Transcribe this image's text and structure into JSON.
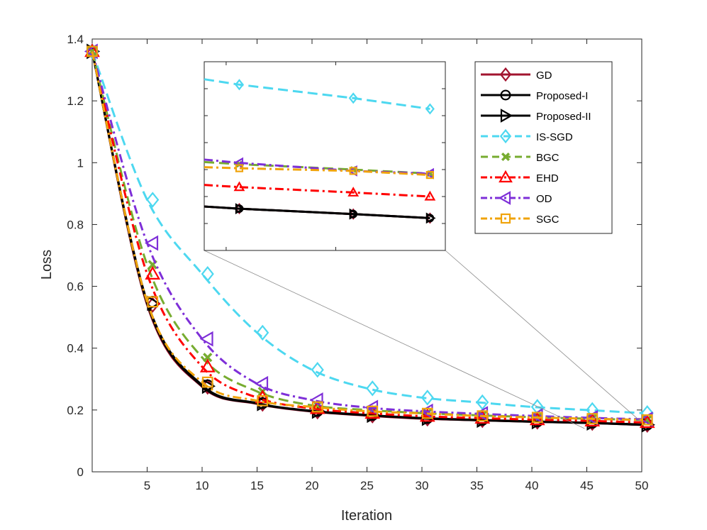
{
  "chart_data": {
    "type": "line",
    "xlabel": "Iteration",
    "ylabel": "Loss",
    "xlim": [
      0,
      50
    ],
    "ylim": [
      0,
      1.4
    ],
    "xticks": [
      5,
      10,
      15,
      20,
      25,
      30,
      35,
      40,
      45,
      50
    ],
    "yticks": [
      0,
      0.2,
      0.4,
      0.6,
      0.8,
      1,
      1.2,
      1.4
    ],
    "xtick_labels": [
      "5",
      "10",
      "15",
      "20",
      "25",
      "30",
      "35",
      "40",
      "45",
      "50"
    ],
    "ytick_labels": [
      "0",
      "0.2",
      "0.4",
      "0.6",
      "0.8",
      "1",
      "1.2",
      "1.4"
    ],
    "legend_position": "top-right, inside plot",
    "series": [
      {
        "name": "GD",
        "color": "#a2142f",
        "dash": "solid",
        "marker": "diamond",
        "x": [
          0,
          5,
          10,
          15,
          20,
          25,
          30,
          35,
          40,
          45,
          50
        ],
        "y": [
          1.36,
          0.54,
          0.275,
          0.22,
          0.195,
          0.182,
          0.172,
          0.167,
          0.162,
          0.158,
          0.152
        ]
      },
      {
        "name": "Proposed-I",
        "color": "#000000",
        "dash": "solid",
        "marker": "circle",
        "x": [
          0,
          5,
          10,
          15,
          20,
          25,
          30,
          35,
          40,
          45,
          50
        ],
        "y": [
          1.36,
          0.55,
          0.28,
          0.222,
          0.197,
          0.184,
          0.174,
          0.168,
          0.163,
          0.159,
          0.153
        ]
      },
      {
        "name": "Proposed-II",
        "color": "#000000",
        "dash": "solid",
        "marker": "triangle-right",
        "x": [
          0,
          5,
          10,
          15,
          20,
          25,
          30,
          35,
          40,
          45,
          50
        ],
        "y": [
          1.36,
          0.545,
          0.277,
          0.221,
          0.196,
          0.183,
          0.173,
          0.167,
          0.162,
          0.158,
          0.152
        ]
      },
      {
        "name": "IS-SGD",
        "color": "#4dd8f0",
        "dash": "dash",
        "marker": "diamond",
        "x": [
          0,
          5,
          10,
          15,
          20,
          25,
          30,
          35,
          40,
          45,
          50
        ],
        "y": [
          1.36,
          0.88,
          0.64,
          0.45,
          0.33,
          0.27,
          0.24,
          0.225,
          0.21,
          0.2,
          0.19
        ]
      },
      {
        "name": "BGC",
        "color": "#77ac30",
        "dash": "dash",
        "marker": "x",
        "x": [
          0,
          5,
          10,
          15,
          20,
          25,
          30,
          35,
          40,
          45,
          50
        ],
        "y": [
          1.36,
          0.67,
          0.37,
          0.26,
          0.215,
          0.2,
          0.19,
          0.183,
          0.177,
          0.172,
          0.168
        ]
      },
      {
        "name": "EHD",
        "color": "#ff0000",
        "dash": "dashdot",
        "marker": "triangle-up",
        "x": [
          0,
          5,
          10,
          15,
          20,
          25,
          30,
          35,
          40,
          45,
          50
        ],
        "y": [
          1.36,
          0.64,
          0.34,
          0.24,
          0.205,
          0.19,
          0.18,
          0.174,
          0.169,
          0.165,
          0.16
        ]
      },
      {
        "name": "OD",
        "color": "#7e2fd8",
        "dash": "dashdot",
        "marker": "triangle-left",
        "x": [
          0,
          5,
          10,
          15,
          20,
          25,
          30,
          35,
          40,
          45,
          50
        ],
        "y": [
          1.36,
          0.74,
          0.43,
          0.285,
          0.232,
          0.208,
          0.196,
          0.188,
          0.181,
          0.175,
          0.17
        ]
      },
      {
        "name": "SGC",
        "color": "#f0a30a",
        "dash": "dashdot",
        "marker": "square",
        "x": [
          0,
          5,
          10,
          15,
          20,
          25,
          30,
          35,
          40,
          45,
          50
        ],
        "y": [
          1.36,
          0.55,
          0.29,
          0.23,
          0.21,
          0.196,
          0.189,
          0.181,
          0.176,
          0.172,
          0.168
        ]
      }
    ],
    "inset": {
      "description": "zoom of iterations 45 to 50 (no tick labels shown)",
      "x_range": [
        44.5,
        50
      ],
      "y_range": [
        0.14,
        0.21
      ],
      "series_points": {
        "GD": [
          0.1555,
          0.1535,
          0.152
        ],
        "Proposed-I": [
          0.1555,
          0.1535,
          0.152
        ],
        "Proposed-II": [
          0.1555,
          0.1535,
          0.152
        ],
        "IS-SGD": [
          0.2015,
          0.1965,
          0.1925
        ],
        "BGC": [
          0.172,
          0.17,
          0.1685
        ],
        "EHD": [
          0.1635,
          0.1615,
          0.16
        ],
        "OD": [
          0.1725,
          0.1695,
          0.1685
        ],
        "SGC": [
          0.1705,
          0.1695,
          0.168
        ]
      }
    }
  }
}
